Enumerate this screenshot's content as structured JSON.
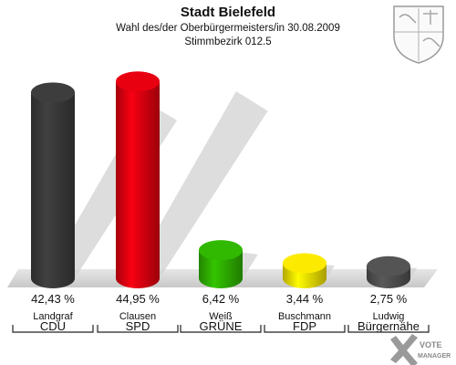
{
  "chart_data": {
    "type": "bar",
    "title": "Stadt Bielefeld",
    "subtitle": "Wahl des/der Oberbürgermeisters/in 30.08.2009",
    "subtitle2": "Stimmbezirk 012.5",
    "ylim": [
      0,
      50
    ],
    "bars": [
      {
        "candidate": "Landgraf",
        "party": "CDU",
        "value": 42.43,
        "label": "42,43 %",
        "color": "#3a3a3a"
      },
      {
        "candidate": "Clausen",
        "party": "SPD",
        "value": 44.95,
        "label": "44,95 %",
        "color": "#dd0010"
      },
      {
        "candidate": "Weiß",
        "party": "GRÜNE",
        "value": 6.42,
        "label": "6,42 %",
        "color": "#2eb000"
      },
      {
        "candidate": "Buschmann",
        "party": "FDP",
        "value": 3.44,
        "label": "3,44 %",
        "color": "#f0e000"
      },
      {
        "candidate": "Ludwig",
        "party": "Bürgernähe",
        "value": 2.75,
        "label": "2,75 %",
        "color": "#505050"
      }
    ]
  },
  "brand": {
    "line1": "VOTE",
    "line2": "MANAGER"
  }
}
